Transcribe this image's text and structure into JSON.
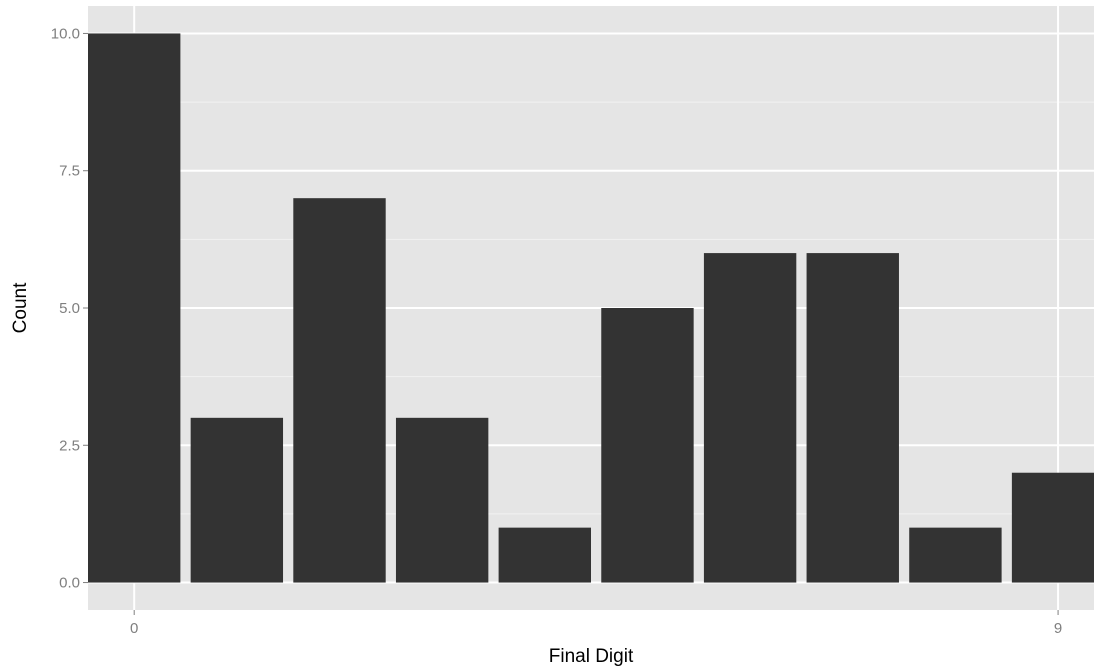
{
  "chart_data": {
    "type": "bar",
    "xlabel": "Final Digit",
    "ylabel": "Count",
    "categories": [
      0,
      1,
      2,
      3,
      4,
      5,
      6,
      7,
      8,
      9
    ],
    "values": [
      10,
      3,
      7,
      3,
      1,
      5,
      6,
      6,
      1,
      2
    ],
    "xlim": [
      -0.45,
      9.35
    ],
    "ylim": [
      -0.5,
      10.5
    ],
    "x_ticks": [
      {
        "value": 0,
        "label": "0"
      },
      {
        "value": 9,
        "label": "9"
      }
    ],
    "y_ticks": [
      {
        "value": 0,
        "label": "0.0"
      },
      {
        "value": 2.5,
        "label": "2.5"
      },
      {
        "value": 5,
        "label": "5.0"
      },
      {
        "value": 7.5,
        "label": "7.5"
      },
      {
        "value": 10,
        "label": "10.0"
      }
    ],
    "y_minor_ticks": [
      1.25,
      3.75,
      6.25,
      8.75
    ],
    "grid": true,
    "legend": "none",
    "colors": {
      "panel_background": "#e5e5e5",
      "grid_major": "#ffffff",
      "grid_minor": "#f2f2f2",
      "bar_fill": "#333333",
      "tick_label": "#7f7f7f",
      "tick_mark": "#7f7f7f",
      "axis_title": "#000000"
    }
  }
}
